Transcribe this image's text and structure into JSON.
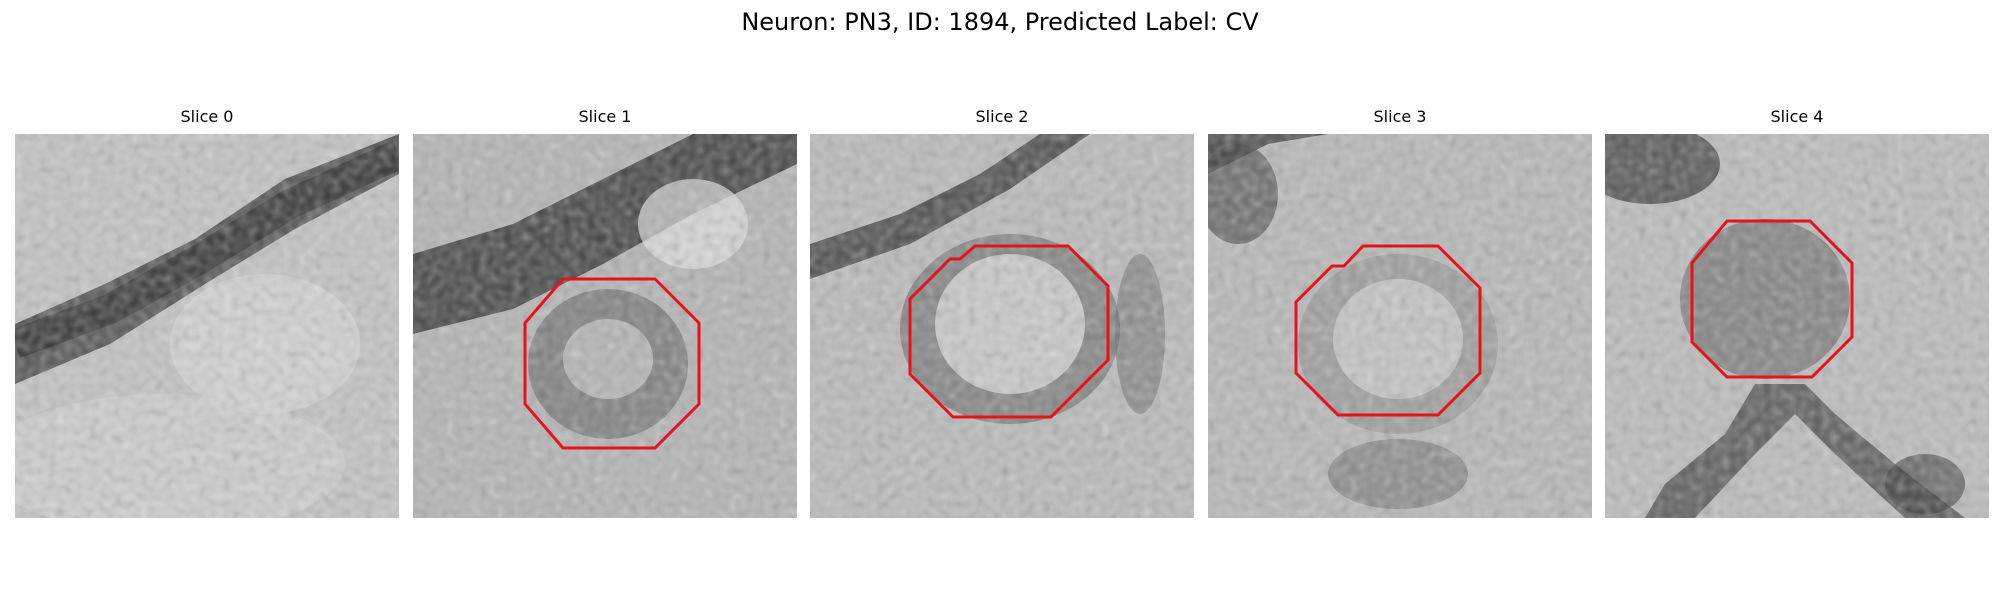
{
  "figure": {
    "title": "Neuron: PN3, ID: 1894, Predicted Label: CV"
  },
  "panels": [
    {
      "title": "Slice 0",
      "has_contour": false
    },
    {
      "title": "Slice 1",
      "has_contour": true
    },
    {
      "title": "Slice 2",
      "has_contour": true
    },
    {
      "title": "Slice 3",
      "has_contour": true
    },
    {
      "title": "Slice 4",
      "has_contour": true
    }
  ],
  "colors": {
    "contour": "#e8131a",
    "background": "#ffffff",
    "text": "#000000"
  },
  "colormap": "gray"
}
